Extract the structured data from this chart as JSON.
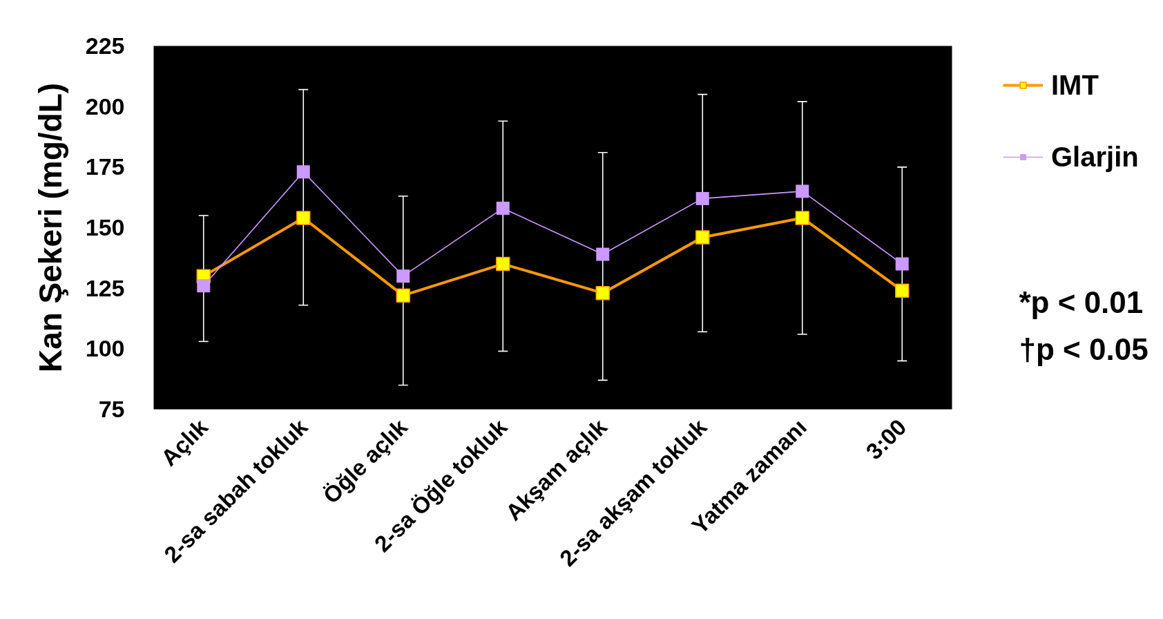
{
  "chart_data": {
    "type": "line",
    "ylabel": "Kan Şekeri (mg/dL)",
    "categories": [
      "Açlık",
      "2-sa sabah tokluk",
      "Öğle açlık",
      "2-sa Öğle tokluk",
      "Akşam açlık",
      "2-sa akşam tokluk",
      "Yatma zamanı",
      "3:00"
    ],
    "series": [
      {
        "name": "IMT",
        "color": "#ff9900",
        "colors": [
          "#ffff00",
          "#ffff00",
          "#ffff00",
          "#ffff00",
          "#ffff00",
          "#ffff00",
          "#ffff00",
          "#ffff00"
        ],
        "values": [
          130,
          154,
          122,
          135,
          123,
          146,
          154,
          124
        ],
        "errors": [
          [
            103,
            155
          ],
          [
            118,
            207
          ],
          [
            85,
            163
          ],
          [
            99,
            194
          ],
          [
            87,
            181
          ],
          [
            107,
            205
          ],
          [
            106,
            202
          ],
          [
            95,
            175
          ]
        ]
      },
      {
        "name": "Glarjin",
        "color": "#cc99ff",
        "values": [
          126,
          173,
          130,
          158,
          139,
          162,
          165,
          135
        ]
      }
    ],
    "ylim": [
      75,
      225
    ],
    "yticks": [
      75,
      100,
      125,
      150,
      175,
      200,
      225
    ],
    "grid": false,
    "legend": "right",
    "marker": "square",
    "line_style": "solid",
    "annotations": [
      "*p < 0.01",
      "†p < 0.05"
    ]
  }
}
